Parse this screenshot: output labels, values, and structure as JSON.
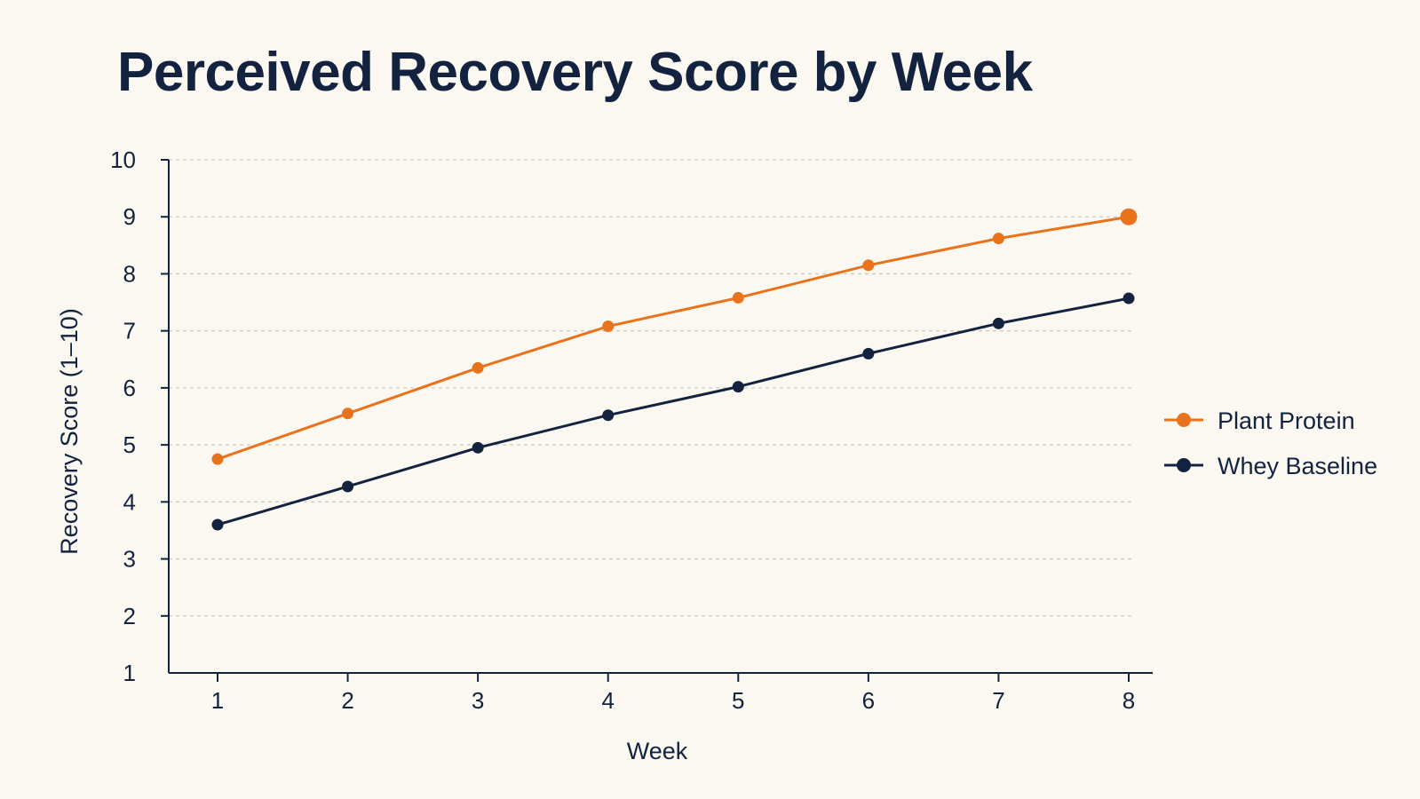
{
  "chart_data": {
    "type": "line",
    "title": "Perceived Recovery Score by Week",
    "xlabel": "Week",
    "ylabel": "Recovery Score (1–10)",
    "x": [
      1,
      2,
      3,
      4,
      5,
      6,
      7,
      8
    ],
    "x_tick_labels": [
      "1",
      "2",
      "3",
      "4",
      "5",
      "6",
      "7",
      "8"
    ],
    "ylim": [
      1,
      10
    ],
    "y_tick_labels": [
      "1",
      "2",
      "3",
      "4",
      "5",
      "6",
      "7",
      "8",
      "9",
      "10"
    ],
    "grid": "horizontal dashed",
    "legend_position": "right",
    "series": [
      {
        "name": "Plant Protein",
        "color": "#e8731c",
        "values": [
          4.75,
          5.55,
          6.35,
          7.08,
          7.58,
          8.15,
          8.62,
          9.0
        ]
      },
      {
        "name": "Whey Baseline",
        "color": "#13233f",
        "values": [
          3.6,
          4.27,
          4.95,
          5.52,
          6.02,
          6.6,
          7.13,
          7.57
        ]
      }
    ]
  }
}
